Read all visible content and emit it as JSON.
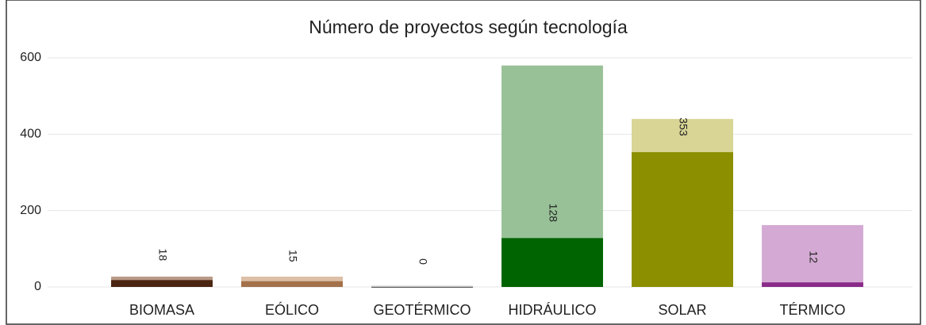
{
  "chart_data": {
    "type": "bar",
    "title": "Número de proyectos según tecnología",
    "categories": [
      "BIOMASA",
      "EÓLICO",
      "GEOTÉRMICO",
      "HIDRÁULICO",
      "SOLAR",
      "TÉRMICO"
    ],
    "series": [
      {
        "colors": [
          "#b89a86",
          "#dcbfa6",
          "#c4c4c4",
          "#98c197",
          "#d8d595",
          "#d4aad4"
        ],
        "values": [
          27,
          27,
          3,
          580,
          440,
          162
        ]
      },
      {
        "colors": [
          "#4a2511",
          "#a3714a",
          "#5a5a5a",
          "#006400",
          "#8b8f00",
          "#8a2b8a"
        ],
        "values": [
          18,
          15,
          0,
          128,
          353,
          12
        ]
      }
    ],
    "ylim": [
      0,
      600
    ],
    "yticks": [
      0,
      200,
      400,
      600
    ],
    "grid": true
  }
}
